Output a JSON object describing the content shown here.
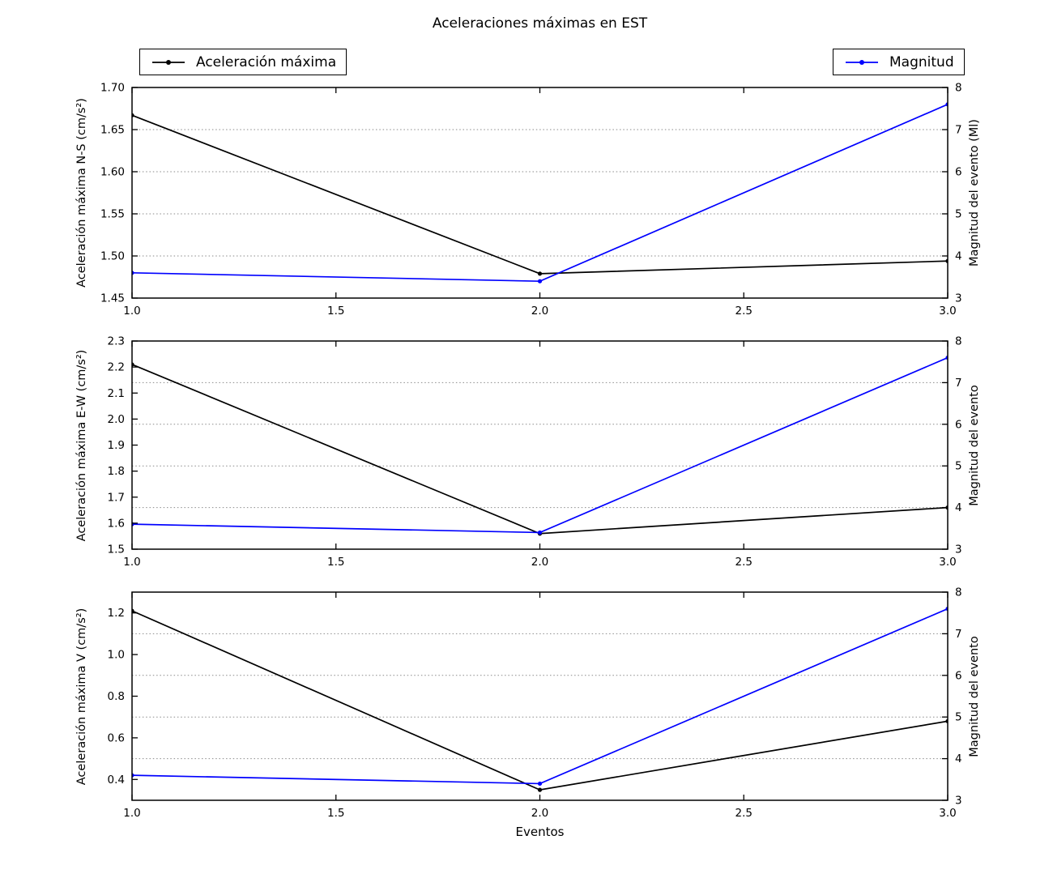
{
  "figure": {
    "title": "Aceleraciones máximas en EST",
    "xlabel": "Eventos",
    "background": "#ffffff"
  },
  "legend": {
    "acceleration": {
      "label": "Aceleración máxima",
      "color": "#000000"
    },
    "magnitude": {
      "label": "Magnitud",
      "color": "#0000ff"
    }
  },
  "chart_data": [
    {
      "type": "line",
      "ylabel_left": "Aceleración máxima N-S (cm/s²)",
      "ylabel_right": "Magnitud del evento (Ml)",
      "x": [
        1,
        2,
        3
      ],
      "xticks": [
        "1.0",
        "1.5",
        "2.0",
        "2.5",
        "3.0"
      ],
      "xlim": [
        1,
        3
      ],
      "ylim_left": [
        1.45,
        1.7
      ],
      "yticks_left": [
        "1.45",
        "1.50",
        "1.55",
        "1.60",
        "1.65",
        "1.70"
      ],
      "ylim_right": [
        3,
        8
      ],
      "yticks_right": [
        "3",
        "4",
        "5",
        "6",
        "7",
        "8"
      ],
      "grid": "horizontal-dotted",
      "legend_position": "outside-top",
      "series": [
        {
          "name": "Aceleración máxima",
          "axis": "left",
          "color": "#000000",
          "marker": "dot",
          "values": [
            1.667,
            1.479,
            1.494
          ]
        },
        {
          "name": "Magnitud",
          "axis": "right",
          "color": "#0000ff",
          "marker": "dot",
          "values": [
            3.6,
            3.4,
            7.6
          ]
        }
      ]
    },
    {
      "type": "line",
      "ylabel_left": "Aceleración máxima E-W (cm/s²)",
      "ylabel_right": "Magnitud del evento",
      "x": [
        1,
        2,
        3
      ],
      "xticks": [
        "1.0",
        "1.5",
        "2.0",
        "2.5",
        "3.0"
      ],
      "xlim": [
        1,
        3
      ],
      "ylim_left": [
        1.5,
        2.3
      ],
      "yticks_left": [
        "1.5",
        "1.6",
        "1.7",
        "1.8",
        "1.9",
        "2.0",
        "2.1",
        "2.2",
        "2.3"
      ],
      "ylim_right": [
        3,
        8
      ],
      "yticks_right": [
        "3",
        "4",
        "5",
        "6",
        "7",
        "8"
      ],
      "grid": "horizontal-dotted",
      "series": [
        {
          "name": "Aceleración máxima",
          "axis": "left",
          "color": "#000000",
          "marker": "dot",
          "values": [
            2.21,
            1.56,
            1.66
          ]
        },
        {
          "name": "Magnitud",
          "axis": "right",
          "color": "#0000ff",
          "marker": "dot",
          "values": [
            3.6,
            3.4,
            7.6
          ]
        }
      ]
    },
    {
      "type": "line",
      "ylabel_left": "Aceleración máxima V (cm/s²)",
      "ylabel_right": "Magnitud del evento",
      "x": [
        1,
        2,
        3
      ],
      "xticks": [
        "1.0",
        "1.5",
        "2.0",
        "2.5",
        "3.0"
      ],
      "xlim": [
        1,
        3
      ],
      "ylim_left": [
        0.3,
        1.3
      ],
      "yticks_left": [
        "0.4",
        "0.6",
        "0.8",
        "1.0",
        "1.2"
      ],
      "ylim_right": [
        3,
        8
      ],
      "yticks_right": [
        "3",
        "4",
        "5",
        "6",
        "7",
        "8"
      ],
      "grid": "horizontal-dotted",
      "series": [
        {
          "name": "Aceleración máxima",
          "axis": "left",
          "color": "#000000",
          "marker": "dot",
          "values": [
            1.21,
            0.35,
            0.68
          ]
        },
        {
          "name": "Magnitud",
          "axis": "right",
          "color": "#0000ff",
          "marker": "dot",
          "values": [
            3.6,
            3.4,
            7.6
          ]
        }
      ]
    }
  ]
}
